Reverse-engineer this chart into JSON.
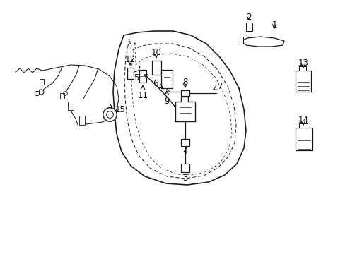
{
  "bg_color": "#ffffff",
  "line_color": "#1a1a1a",
  "fig_width": 4.89,
  "fig_height": 3.6,
  "dpi": 100,
  "label_fs": 8.5,
  "lw": 0.9
}
